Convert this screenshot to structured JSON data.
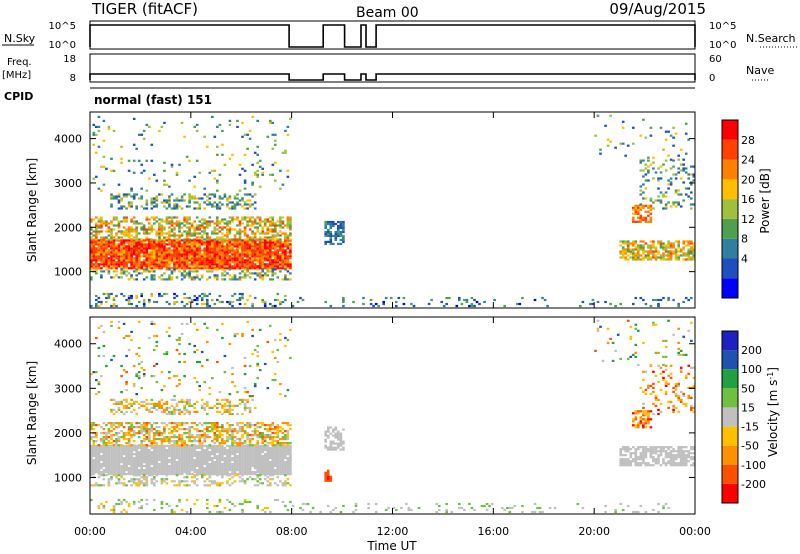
{
  "header": {
    "title": "TIGER (fitACF)",
    "beam": "Beam 00",
    "date": "09/Aug/2015"
  },
  "panels": {
    "nsky": {
      "label": "N.Sky",
      "ticks": [
        "10^5",
        "10^0"
      ],
      "right_label": "N.Search",
      "right_ticks": [
        "10^5",
        "10^0"
      ]
    },
    "freq": {
      "label_line1": "Freq.",
      "label_line2": "[MHz]",
      "ticks": [
        "18",
        "8"
      ],
      "right_label": "Nave",
      "right_ticks": [
        "60",
        "0"
      ]
    },
    "cpid": {
      "label": "CPID",
      "value": "normal (fast) 151"
    }
  },
  "colors": {
    "power": [
      "#0000ff",
      "#1f4fbf",
      "#2f7f9f",
      "#4f9f4f",
      "#9fbf3f",
      "#ffbf00",
      "#ff8000",
      "#ff4000",
      "#ff0000"
    ],
    "velocity": [
      "#ff0000",
      "#ff5000",
      "#ff9000",
      "#ffc000",
      "#c0c0c0",
      "#70c040",
      "#20a040",
      "#2050b0",
      "#2020c0"
    ]
  },
  "chart_data": [
    {
      "type": "heatmap",
      "name": "power",
      "ylabel": "Slant Range [km]",
      "ylim": [
        180,
        4600
      ],
      "yticks": [
        "4000",
        "3000",
        "2000",
        "1000"
      ],
      "xlim": [
        0,
        24
      ],
      "colorbar": {
        "label": "Power [dB]",
        "ticks": [
          "28",
          "24",
          "20",
          "16",
          "12",
          "8",
          "4"
        ],
        "range": [
          0,
          32
        ]
      },
      "regions": [
        {
          "t": [
            0,
            7.9
          ],
          "r": [
            1050,
            1700
          ],
          "vmin": 20,
          "vmax": 32,
          "density": 0.95
        },
        {
          "t": [
            0,
            7.9
          ],
          "r": [
            1700,
            2200
          ],
          "vmin": 10,
          "vmax": 26,
          "density": 0.55
        },
        {
          "t": [
            0.8,
            6.5
          ],
          "r": [
            2400,
            2750
          ],
          "vmin": 4,
          "vmax": 20,
          "density": 0.35
        },
        {
          "t": [
            0,
            7.9
          ],
          "r": [
            800,
            1050
          ],
          "vmin": 6,
          "vmax": 22,
          "density": 0.4
        },
        {
          "t": [
            0,
            7.9
          ],
          "r": [
            200,
            500
          ],
          "vmin": 2,
          "vmax": 20,
          "density": 0.25
        },
        {
          "t": [
            0,
            7.9
          ],
          "r": [
            2800,
            4500
          ],
          "vmin": 4,
          "vmax": 20,
          "density": 0.05
        },
        {
          "t": [
            9.3,
            10.0
          ],
          "r": [
            1600,
            2100
          ],
          "vmin": 4,
          "vmax": 12,
          "density": 0.6
        },
        {
          "t": [
            8.0,
            24
          ],
          "r": [
            200,
            420
          ],
          "vmin": 2,
          "vmax": 14,
          "density": 0.12
        },
        {
          "t": [
            21.0,
            24
          ],
          "r": [
            1250,
            1700
          ],
          "vmin": 12,
          "vmax": 26,
          "density": 0.7
        },
        {
          "t": [
            21.5,
            22.3
          ],
          "r": [
            2100,
            2500
          ],
          "vmin": 20,
          "vmax": 28,
          "density": 0.6
        },
        {
          "t": [
            21.8,
            24
          ],
          "r": [
            2400,
            3500
          ],
          "vmin": 4,
          "vmax": 20,
          "density": 0.2
        },
        {
          "t": [
            20.0,
            24
          ],
          "r": [
            3500,
            4500
          ],
          "vmin": 4,
          "vmax": 20,
          "density": 0.05
        }
      ]
    },
    {
      "type": "heatmap",
      "name": "velocity",
      "ylabel": "Slant Range [km]",
      "ylim": [
        180,
        4600
      ],
      "yticks": [
        "4000",
        "3000",
        "2000",
        "1000"
      ],
      "xlim": [
        0,
        24
      ],
      "xlabel": "Time UT",
      "xticks": [
        "00:00",
        "04:00",
        "08:00",
        "12:00",
        "16:00",
        "20:00",
        "00:00"
      ],
      "colorbar": {
        "label": "Velocity [m s",
        "label_sup": "-1",
        "label_end": "]",
        "ticks": [
          "200",
          "100",
          "50",
          "15",
          "-15",
          "-50",
          "-100",
          "-200"
        ],
        "range": [
          -300,
          300
        ]
      },
      "regions": [
        {
          "t": [
            0,
            7.9
          ],
          "r": [
            1050,
            1700
          ],
          "vmin": -12,
          "vmax": 12,
          "density": 0.95
        },
        {
          "t": [
            0,
            7.9
          ],
          "r": [
            1700,
            2200
          ],
          "vmin": -200,
          "vmax": 100,
          "density": 0.55
        },
        {
          "t": [
            0.8,
            6.5
          ],
          "r": [
            2400,
            2750
          ],
          "vmin": -150,
          "vmax": 60,
          "density": 0.35
        },
        {
          "t": [
            0,
            7.9
          ],
          "r": [
            800,
            1050
          ],
          "vmin": -60,
          "vmax": 60,
          "density": 0.35
        },
        {
          "t": [
            0,
            7.9
          ],
          "r": [
            200,
            500
          ],
          "vmin": -100,
          "vmax": 100,
          "density": 0.2
        },
        {
          "t": [
            0,
            7.9
          ],
          "r": [
            2800,
            4500
          ],
          "vmin": -200,
          "vmax": 200,
          "density": 0.05
        },
        {
          "t": [
            9.3,
            10.0
          ],
          "r": [
            1600,
            2100
          ],
          "vmin": -12,
          "vmax": 12,
          "density": 0.6
        },
        {
          "t": [
            9.3,
            9.6
          ],
          "r": [
            900,
            1150
          ],
          "vmin": -260,
          "vmax": -160,
          "density": 0.7
        },
        {
          "t": [
            8.0,
            24
          ],
          "r": [
            200,
            420
          ],
          "vmin": -14,
          "vmax": 60,
          "density": 0.12
        },
        {
          "t": [
            21.0,
            24
          ],
          "r": [
            1250,
            1700
          ],
          "vmin": -12,
          "vmax": 12,
          "density": 0.7
        },
        {
          "t": [
            21.5,
            22.3
          ],
          "r": [
            2100,
            2500
          ],
          "vmin": -260,
          "vmax": -60,
          "density": 0.6
        },
        {
          "t": [
            21.8,
            24
          ],
          "r": [
            2400,
            3500
          ],
          "vmin": -250,
          "vmax": 0,
          "density": 0.2
        },
        {
          "t": [
            20.0,
            24
          ],
          "r": [
            3500,
            4500
          ],
          "vmin": -200,
          "vmax": 200,
          "density": 0.05
        }
      ]
    }
  ]
}
